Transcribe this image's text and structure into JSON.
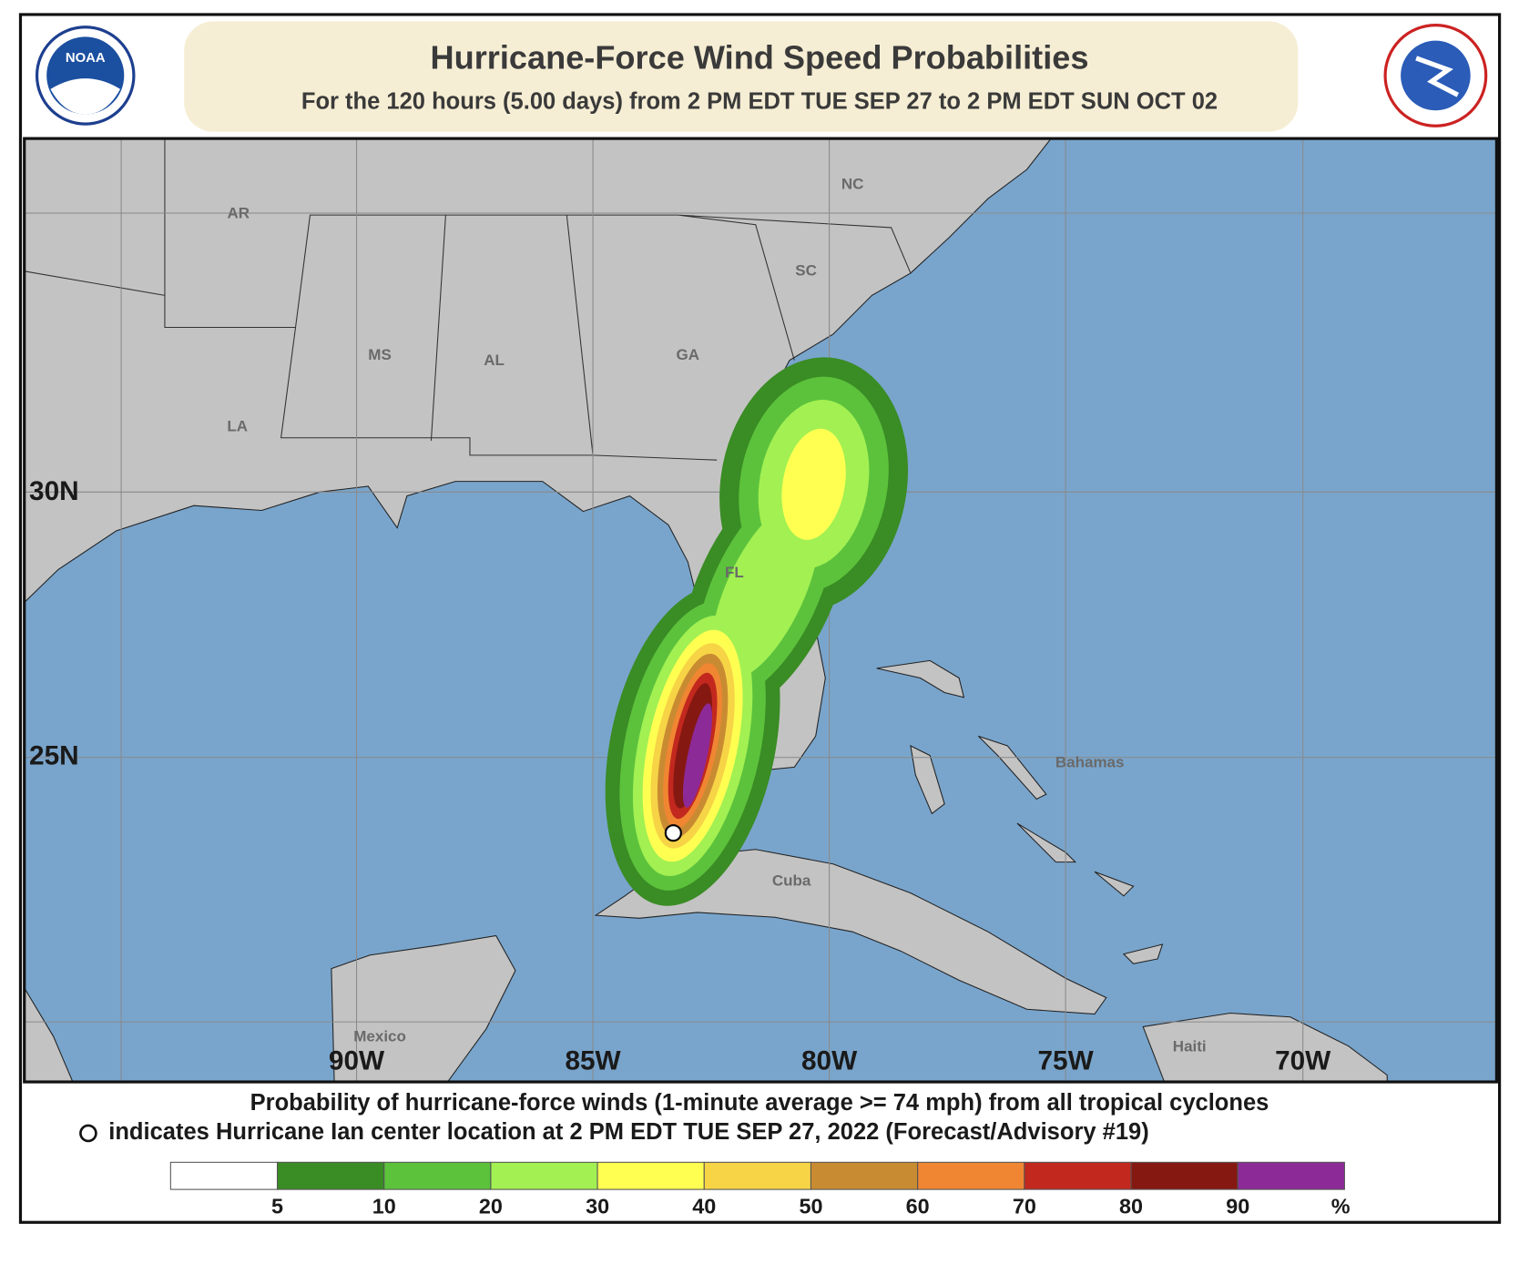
{
  "header": {
    "title": "Hurricane-Force Wind Speed Probabilities",
    "subtitle": "For the 120 hours (5.00 days) from 2 PM EDT TUE SEP 27 to 2 PM EDT SUN OCT 02",
    "noaa_logo": "NOAA"
  },
  "map": {
    "lat_labels": [
      "30N",
      "25N"
    ],
    "lon_labels": [
      "90W",
      "85W",
      "80W",
      "75W",
      "70W"
    ],
    "place_labels": [
      "AR",
      "MS",
      "AL",
      "GA",
      "SC",
      "NC",
      "LA",
      "FL",
      "Bahamas",
      "Cuba",
      "Mexico",
      "Haiti"
    ]
  },
  "caption": {
    "line1": "Probability of hurricane-force winds (1-minute average >= 74 mph) from all tropical cyclones",
    "line2": "indicates Hurricane Ian center location at 2 PM EDT TUE SEP 27, 2022 (Forecast/Advisory #19)"
  },
  "legend": {
    "colors": [
      "#ffffff",
      "#3a8c24",
      "#5cc23c",
      "#a2f052",
      "#ffff52",
      "#f6d446",
      "#c98b32",
      "#f08632",
      "#c2281e",
      "#861812",
      "#8c2a98"
    ],
    "ticks": [
      5,
      10,
      20,
      30,
      40,
      50,
      60,
      70,
      80,
      90
    ],
    "unit": "%"
  }
}
